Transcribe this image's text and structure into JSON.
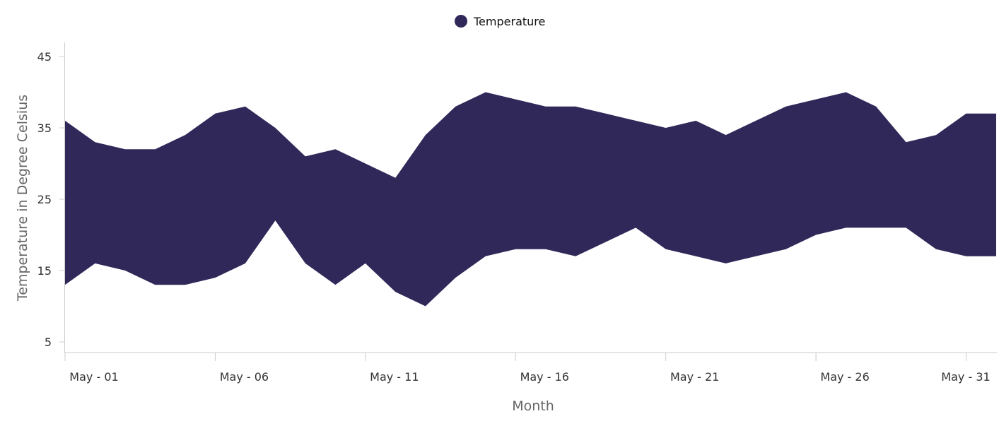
{
  "chart_data": {
    "type": "area",
    "subtype": "range",
    "title": "",
    "xlabel": "Month",
    "ylabel": "Temperature in Degree Celsius",
    "x_tick_labels": [
      "May - 01",
      "May - 06",
      "May - 11",
      "May - 16",
      "May - 21",
      "May - 26",
      "May - 31"
    ],
    "y_ticks": [
      5,
      15,
      25,
      35,
      45
    ],
    "ylim": [
      3,
      48
    ],
    "legend": {
      "position": "top-center",
      "items": [
        "Temperature"
      ]
    },
    "grid": false,
    "series": [
      {
        "name": "Temperature",
        "color": "#31285A",
        "x": [
          "May - 01",
          "May - 02",
          "May - 03",
          "May - 04",
          "May - 05",
          "May - 06",
          "May - 07",
          "May - 08",
          "May - 09",
          "May - 10",
          "May - 11",
          "May - 12",
          "May - 13",
          "May - 14",
          "May - 15",
          "May - 16",
          "May - 17",
          "May - 18",
          "May - 19",
          "May - 20",
          "May - 21",
          "May - 22",
          "May - 23",
          "May - 24",
          "May - 25",
          "May - 26",
          "May - 27",
          "May - 28",
          "May - 29",
          "May - 30",
          "May - 31",
          "Jun - 01"
        ],
        "high": [
          36,
          33,
          32,
          32,
          34,
          37,
          38,
          35,
          31,
          32,
          30,
          28,
          34,
          38,
          40,
          39,
          38,
          38,
          37,
          36,
          35,
          36,
          34,
          36,
          38,
          39,
          40,
          38,
          33,
          34,
          37,
          37
        ],
        "low": [
          13,
          16,
          15,
          13,
          13,
          14,
          16,
          22,
          16,
          13,
          16,
          12,
          10,
          14,
          17,
          18,
          18,
          17,
          19,
          21,
          18,
          17,
          16,
          17,
          18,
          20,
          21,
          21,
          21,
          18,
          17,
          17
        ]
      }
    ]
  }
}
